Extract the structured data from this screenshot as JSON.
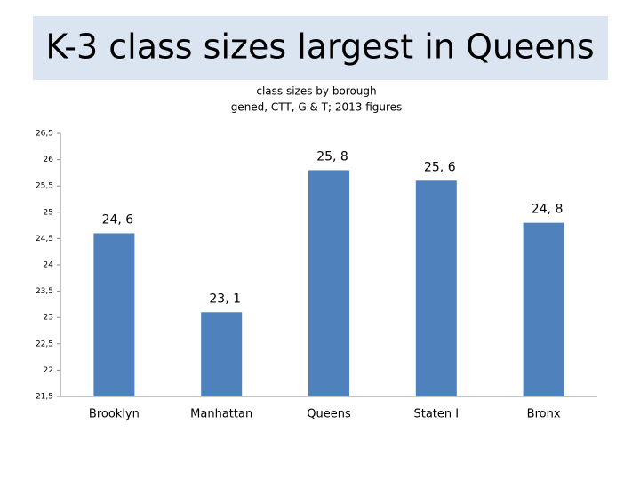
{
  "header": {
    "title": "K-3 class sizes largest in Queens"
  },
  "chart_data": {
    "type": "bar",
    "title": "class sizes by borough",
    "subtitle": "gened, CTT, G & T; 2013 figures",
    "categories": [
      "Brooklyn",
      "Manhattan",
      "Queens",
      "Staten I",
      "Bronx"
    ],
    "values": [
      24.6,
      23.1,
      25.8,
      25.6,
      24.8
    ],
    "value_labels": [
      "24, 6",
      "23, 1",
      "25, 8",
      "25, 6",
      "24, 8"
    ],
    "color": "#4f81bd",
    "ylim": [
      21.5,
      26.5
    ],
    "yticks": [
      {
        "value": 21.5,
        "label": "21,5"
      },
      22,
      {
        "value": 22.5,
        "label": "22,5"
      },
      23,
      {
        "value": 23.5,
        "label": "23,5"
      },
      24,
      {
        "value": 24.5,
        "label": "24,5"
      },
      25,
      {
        "value": 25.5,
        "label": "25,5"
      },
      26,
      {
        "value": 26.5,
        "label": "26,5"
      }
    ],
    "grid": false
  }
}
